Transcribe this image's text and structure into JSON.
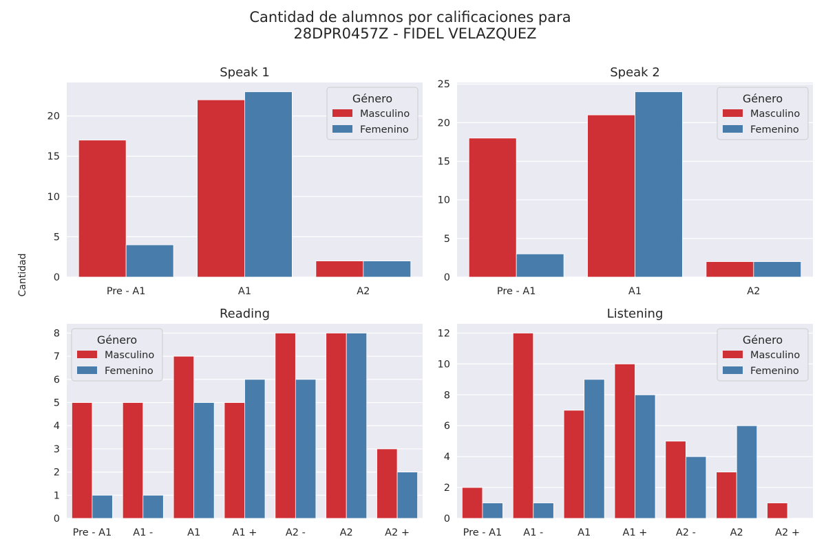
{
  "figure": {
    "title_line1": "Cantidad de alumnos por calificaciones para",
    "title_line2": "28DPR0457Z - FIDEL VELAZQUEZ",
    "ylabel": "Cantidad"
  },
  "colors": {
    "Masculino": "#cf3035",
    "Femenino": "#487cab",
    "plot_bg": "#eaeaf2",
    "grid": "#ffffff"
  },
  "chart_data": [
    {
      "type": "bar",
      "title": "Speak 1",
      "categories": [
        "Pre - A1",
        "A1",
        "A2"
      ],
      "series": [
        {
          "name": "Masculino",
          "values": [
            17,
            22,
            2
          ]
        },
        {
          "name": "Femenino",
          "values": [
            4,
            23,
            2
          ]
        }
      ],
      "ylim": [
        0,
        24.15
      ],
      "yticks": [
        0,
        5,
        10,
        15,
        20
      ],
      "grid": true,
      "legend": {
        "title": "Género",
        "placement": "top-right"
      }
    },
    {
      "type": "bar",
      "title": "Speak 2",
      "categories": [
        "Pre - A1",
        "A1",
        "A2"
      ],
      "series": [
        {
          "name": "Masculino",
          "values": [
            18,
            21,
            2
          ]
        },
        {
          "name": "Femenino",
          "values": [
            3,
            24,
            2
          ]
        }
      ],
      "ylim": [
        0,
        25.2
      ],
      "yticks": [
        0,
        5,
        10,
        15,
        20,
        25
      ],
      "grid": true,
      "legend": {
        "title": "Género",
        "placement": "top-right"
      }
    },
    {
      "type": "bar",
      "title": "Reading",
      "categories": [
        "Pre - A1",
        "A1 -",
        "A1",
        "A1 +",
        "A2 -",
        "A2",
        "A2 +"
      ],
      "series": [
        {
          "name": "Masculino",
          "values": [
            5,
            5,
            7,
            5,
            8,
            8,
            3
          ]
        },
        {
          "name": "Femenino",
          "values": [
            1,
            1,
            5,
            6,
            6,
            8,
            2
          ]
        }
      ],
      "ylim": [
        0,
        8.4
      ],
      "yticks": [
        0,
        1,
        2,
        3,
        4,
        5,
        6,
        7,
        8
      ],
      "grid": true,
      "legend": {
        "title": "Género",
        "placement": "top-left"
      }
    },
    {
      "type": "bar",
      "title": "Listening",
      "categories": [
        "Pre - A1",
        "A1 -",
        "A1",
        "A1 +",
        "A2 -",
        "A2",
        "A2 +"
      ],
      "series": [
        {
          "name": "Masculino",
          "values": [
            2,
            12,
            7,
            10,
            5,
            3,
            1
          ]
        },
        {
          "name": "Femenino",
          "values": [
            1,
            1,
            9,
            8,
            4,
            6,
            0
          ]
        }
      ],
      "ylim": [
        0,
        12.6
      ],
      "yticks": [
        0,
        2,
        4,
        6,
        8,
        10,
        12
      ],
      "grid": true,
      "legend": {
        "title": "Género",
        "placement": "top-right"
      }
    }
  ]
}
